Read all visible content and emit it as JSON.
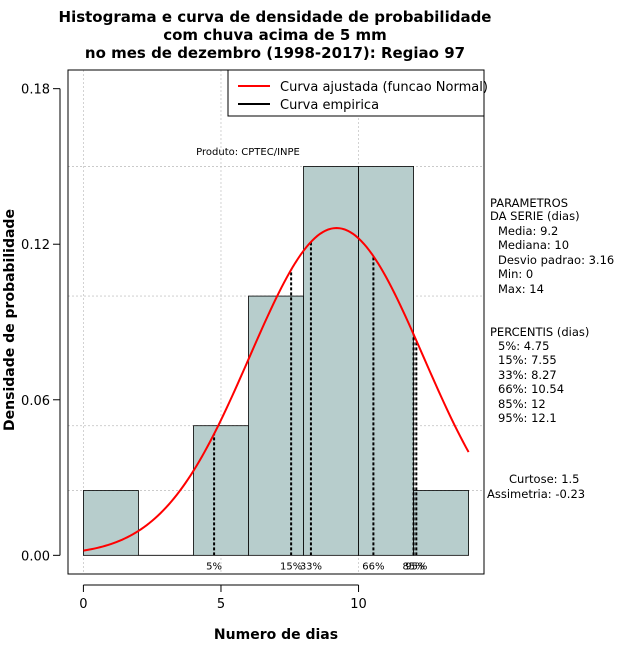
{
  "chart_data": {
    "type": "histogram",
    "title": [
      "Histograma e curva de densidade de probabilidade",
      "com chuva acima de 5 mm",
      "no mes de dezembro (1998-2017): Regiao 97"
    ],
    "xlabel": "Numero de dias",
    "ylabel": "Densidade de probabilidade",
    "xlim": [
      -0.56,
      14.56
    ],
    "ylim": [
      -0.0072,
      0.1872
    ],
    "x_ticks": [
      0,
      5,
      10
    ],
    "y_ticks": [
      0.0,
      0.06,
      0.12,
      0.18
    ],
    "y_tick_labels": [
      "0.00",
      "0.06",
      "0.12",
      "0.18"
    ],
    "grid": true,
    "bins": [
      {
        "start": 0,
        "end": 2,
        "density": 0.025
      },
      {
        "start": 2,
        "end": 4,
        "density": 0.0
      },
      {
        "start": 4,
        "end": 6,
        "density": 0.05
      },
      {
        "start": 6,
        "end": 8,
        "density": 0.1
      },
      {
        "start": 8,
        "end": 10,
        "density": 0.15
      },
      {
        "start": 10,
        "end": 12,
        "density": 0.15
      },
      {
        "start": 12,
        "end": 14,
        "density": 0.025
      }
    ],
    "fitted_curve": {
      "distribution": "normal",
      "mean": 9.2,
      "sd": 3.16,
      "x_range": [
        0,
        14
      ]
    },
    "percentile_lines": [
      {
        "label": "5%",
        "x": 4.75
      },
      {
        "label": "15%",
        "x": 7.55
      },
      {
        "label": "33%",
        "x": 8.27
      },
      {
        "label": "66%",
        "x": 10.54
      },
      {
        "label": "85%",
        "x": 12
      },
      {
        "label": "95%",
        "x": 12.1
      }
    ],
    "legend": {
      "position": "top-right",
      "entries": [
        {
          "label": "Curva ajustada (funcao Normal)",
          "color": "#ff0000"
        },
        {
          "label": "Curva empirica",
          "color": "#000000"
        }
      ]
    },
    "annotation": "Produto: CPTEC/INPE",
    "bar_color": "#b7cdcc",
    "curve_color": "#ff0000"
  },
  "side_panel": {
    "params_title": [
      "PARAMETROS",
      "DA SERIE (dias)"
    ],
    "params": [
      "Media: 9.2",
      "Mediana: 10",
      "Desvio padrao: 3.16",
      "Min: 0",
      "Max: 14"
    ],
    "percentis_title": "PERCENTIS (dias)",
    "percentis": [
      "5%: 4.75",
      "15%: 7.55",
      "33%: 8.27",
      "66%: 10.54",
      "85%: 12",
      "95%: 12.1"
    ],
    "curtose": "Curtose: 1.5",
    "assimetria": "Assimetria: -0.23"
  }
}
